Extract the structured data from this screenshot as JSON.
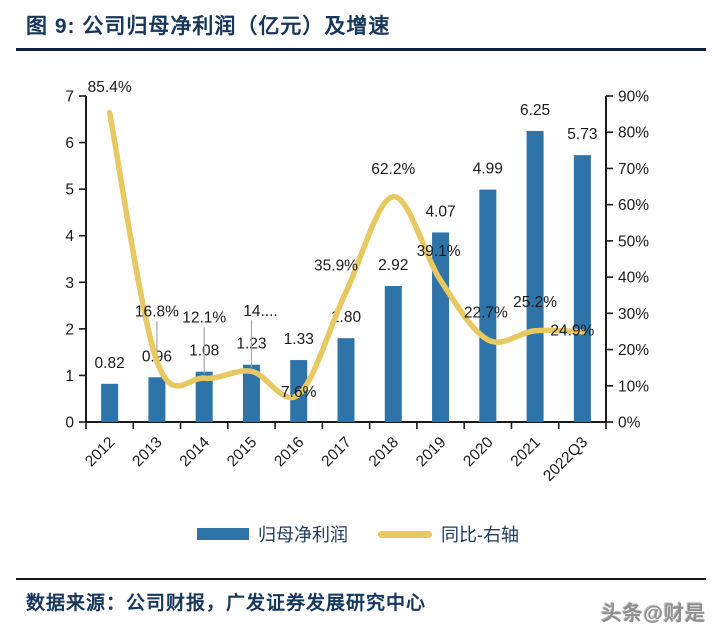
{
  "header": {
    "title": "图 9: 公司归母净利润（亿元）及增速"
  },
  "colors": {
    "bar": "#2E74A8",
    "line": "#E7C861",
    "axis": "#1a1a1a",
    "label": "#1a1a1a",
    "leader": "#A6A6A6",
    "title": "#16365C"
  },
  "chart_data": {
    "type": "bar",
    "title": "图 9: 公司归母净利润（亿元）及增速",
    "categories": [
      "2012",
      "2013",
      "2014",
      "2015",
      "2016",
      "2017",
      "2018",
      "2019",
      "2020",
      "2021",
      "2022Q3"
    ],
    "series": [
      {
        "name": "归母净利润",
        "type": "bar",
        "axis": "left",
        "values": [
          0.82,
          0.96,
          1.08,
          1.23,
          1.33,
          1.8,
          2.92,
          4.07,
          4.99,
          6.25,
          5.73
        ],
        "labels": [
          "0.82",
          "0.96",
          "1.08",
          "1.23",
          "1.33",
          "1.80",
          "2.92",
          "4.07",
          "4.99",
          "6.25",
          "5.73"
        ]
      },
      {
        "name": "同比-右轴",
        "type": "line",
        "axis": "right",
        "values": [
          85.4,
          16.8,
          12.1,
          14.0,
          7.6,
          35.9,
          62.2,
          39.1,
          22.7,
          25.2,
          24.9
        ],
        "labels": [
          "85.4%",
          "16.8%",
          "12.1%",
          "14....",
          "7.6%",
          "35.9%",
          "62.2%",
          "39.1%",
          "22.7%",
          "25.2%",
          "24.9%"
        ]
      }
    ],
    "left_axis": {
      "min": 0,
      "max": 7,
      "ticks": [
        "0",
        "1",
        "2",
        "3",
        "4",
        "5",
        "6",
        "7"
      ]
    },
    "right_axis": {
      "min": 0,
      "max": 90,
      "ticks": [
        "0%",
        "10%",
        "20%",
        "30%",
        "40%",
        "50%",
        "60%",
        "70%",
        "80%",
        "90%"
      ]
    },
    "grid": "off",
    "legend_position": "bottom"
  },
  "legend": {
    "items": [
      {
        "label": "归母净利润",
        "type": "bar"
      },
      {
        "label": "同比-右轴",
        "type": "line"
      }
    ]
  },
  "footer": {
    "source": "数据来源：公司财报，广发证券发展研究中心",
    "watermark": "头条@财是"
  }
}
